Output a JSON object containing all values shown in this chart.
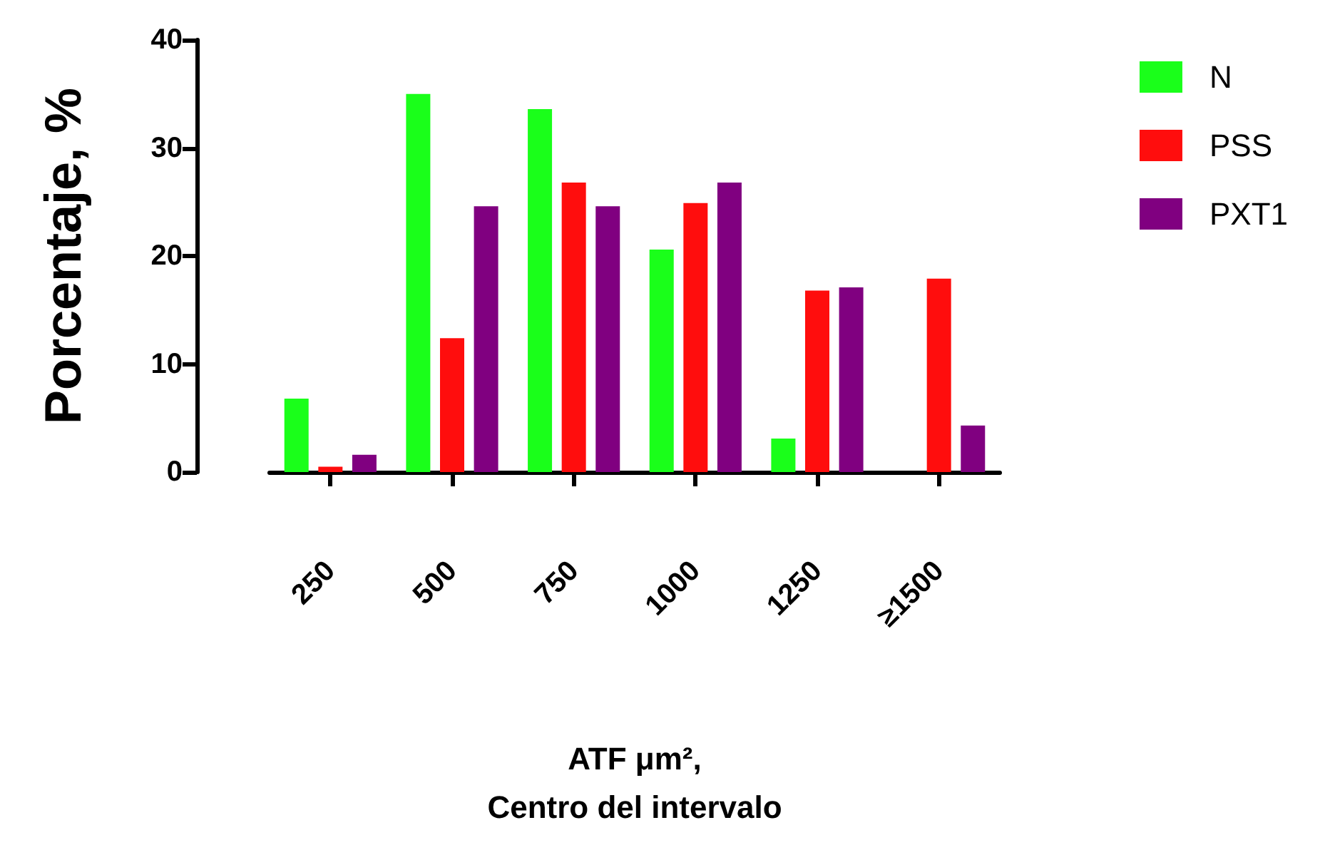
{
  "chart_data": {
    "type": "bar",
    "xlabel": "ATF μm²,\nCentro del intervalo",
    "ylabel": "Porcentaje, %",
    "categories": [
      "250",
      "500",
      "750",
      "1000",
      "1250",
      "≥1500"
    ],
    "series": [
      {
        "name": "N",
        "color": "#1aff1a",
        "values": [
          6.8,
          35,
          33.6,
          20.6,
          3.1,
          null
        ]
      },
      {
        "name": "PSS",
        "color": "#ff0d0d",
        "values": [
          0.5,
          12.4,
          26.8,
          24.9,
          16.8,
          17.9
        ]
      },
      {
        "name": "PXT1",
        "color": "#800080",
        "values": [
          1.6,
          24.6,
          24.6,
          26.8,
          17.1,
          4.3
        ]
      }
    ],
    "ylim": [
      0,
      40
    ],
    "yticks": [
      0,
      10,
      20,
      30,
      40
    ],
    "grid": false,
    "legend": "top right"
  }
}
